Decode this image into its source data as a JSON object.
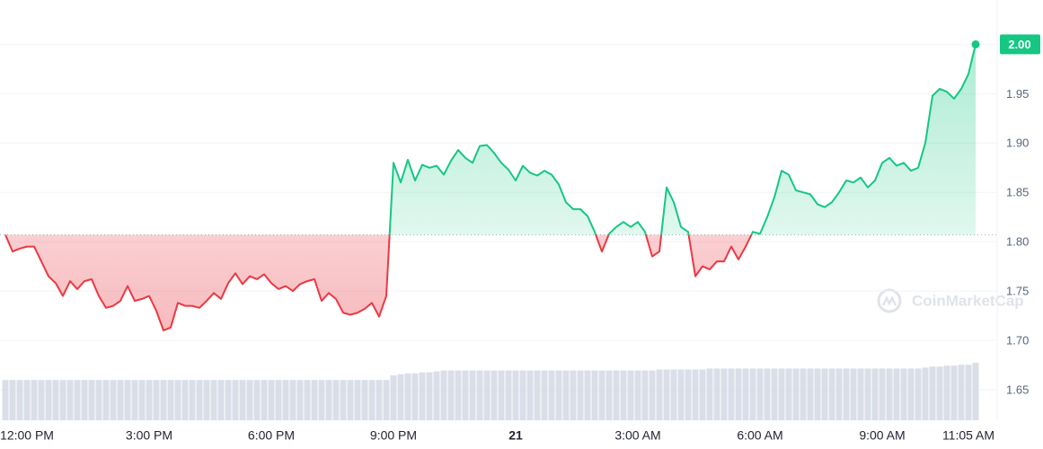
{
  "chart_data": {
    "type": "line",
    "watermark": "CoinMarketCap",
    "values": [
      1.807,
      1.79,
      1.793,
      1.795,
      1.795,
      1.78,
      1.765,
      1.758,
      1.745,
      1.76,
      1.752,
      1.76,
      1.762,
      1.745,
      1.733,
      1.735,
      1.74,
      1.755,
      1.74,
      1.742,
      1.745,
      1.73,
      1.71,
      1.713,
      1.738,
      1.735,
      1.735,
      1.733,
      1.74,
      1.748,
      1.742,
      1.758,
      1.768,
      1.757,
      1.765,
      1.762,
      1.767,
      1.758,
      1.752,
      1.755,
      1.75,
      1.757,
      1.76,
      1.762,
      1.74,
      1.748,
      1.742,
      1.728,
      1.726,
      1.728,
      1.732,
      1.738,
      1.724,
      1.745,
      1.88,
      1.86,
      1.883,
      1.862,
      1.878,
      1.875,
      1.877,
      1.868,
      1.882,
      1.893,
      1.885,
      1.88,
      1.897,
      1.898,
      1.89,
      1.88,
      1.873,
      1.862,
      1.877,
      1.87,
      1.867,
      1.872,
      1.868,
      1.858,
      1.84,
      1.833,
      1.833,
      1.826,
      1.81,
      1.79,
      1.808,
      1.815,
      1.82,
      1.815,
      1.82,
      1.81,
      1.785,
      1.79,
      1.855,
      1.84,
      1.815,
      1.81,
      1.765,
      1.775,
      1.772,
      1.78,
      1.78,
      1.795,
      1.782,
      1.795,
      1.81,
      1.808,
      1.825,
      1.845,
      1.872,
      1.868,
      1.852,
      1.85,
      1.848,
      1.838,
      1.835,
      1.84,
      1.85,
      1.862,
      1.86,
      1.865,
      1.855,
      1.862,
      1.88,
      1.885,
      1.877,
      1.88,
      1.872,
      1.875,
      1.9,
      1.948,
      1.955,
      1.952,
      1.945,
      1.955,
      1.97,
      2.0
    ],
    "volume": [
      42,
      42,
      42,
      42,
      42,
      42,
      42,
      42,
      42,
      42,
      42,
      42,
      42,
      42,
      42,
      42,
      42,
      42,
      42,
      42,
      42,
      42,
      42,
      42,
      42,
      42,
      42,
      42,
      42,
      42,
      42,
      42,
      42,
      42,
      42,
      42,
      42,
      42,
      42,
      42,
      42,
      42,
      42,
      42,
      42,
      42,
      42,
      42,
      42,
      42,
      42,
      42,
      42,
      42,
      47,
      48,
      49,
      49,
      50,
      50,
      51,
      52,
      52,
      52,
      52,
      52,
      52,
      52,
      52,
      52,
      52,
      52,
      52,
      52,
      52,
      52,
      52,
      52,
      52,
      52,
      52,
      52,
      52,
      52,
      52,
      52,
      52,
      52,
      52,
      52,
      52,
      53,
      53,
      53,
      53,
      53,
      53,
      53,
      54,
      54,
      54,
      54,
      54,
      54,
      54,
      54,
      54,
      54,
      54,
      54,
      54,
      54,
      54,
      54,
      54,
      54,
      54,
      54,
      54,
      54,
      54,
      54,
      54,
      54,
      54,
      54,
      54,
      54,
      55,
      56,
      56,
      57,
      57,
      58,
      58,
      60
    ],
    "baseline": 1.807,
    "up_color": "#16c784",
    "down_color": "#ea3943",
    "volume_color": "#cfd6e4",
    "grid": true,
    "ylim": [
      1.619,
      2.045
    ],
    "yticks": [
      1.65,
      {
        "value": 1.7,
        "label": "1.70"
      },
      1.75,
      {
        "value": 1.8,
        "label": "1.80"
      },
      1.85,
      {
        "value": 1.9,
        "label": "1.90"
      },
      1.95,
      {
        "value": 2.0,
        "label": "2.00"
      }
    ],
    "xlim": [
      -0.75,
      138
    ],
    "xticks": [
      {
        "value": 3,
        "label": "12:00 PM"
      },
      {
        "value": 20,
        "label": "3:00 PM"
      },
      {
        "value": 37,
        "label": "6:00 PM"
      },
      {
        "value": 54,
        "label": "9:00 PM"
      },
      {
        "value": 71,
        "label": "21"
      },
      {
        "value": 88,
        "label": "3:00 AM"
      },
      {
        "value": 105,
        "label": "6:00 AM"
      },
      {
        "value": 122,
        "label": "9:00 AM"
      },
      {
        "value": 134,
        "label": "11:05 AM"
      }
    ]
  }
}
